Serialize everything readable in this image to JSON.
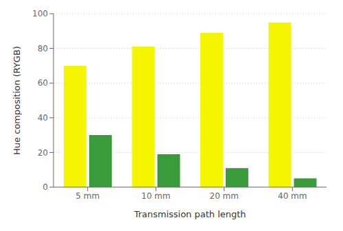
{
  "chart_data": {
    "type": "bar",
    "categories": [
      "5 mm",
      "10 mm",
      "20 mm",
      "40 mm"
    ],
    "series": [
      {
        "color": "#f5f500",
        "values": [
          70,
          81,
          89,
          95
        ]
      },
      {
        "color": "#3a9b3a",
        "values": [
          30,
          19,
          11,
          5
        ]
      }
    ],
    "xlabel": "Transmission path length",
    "ylabel": "Hue composition (RYGB)",
    "ylim": [
      0,
      100
    ],
    "yticks": [
      0,
      20,
      40,
      60,
      80,
      100
    ],
    "grid": true
  }
}
